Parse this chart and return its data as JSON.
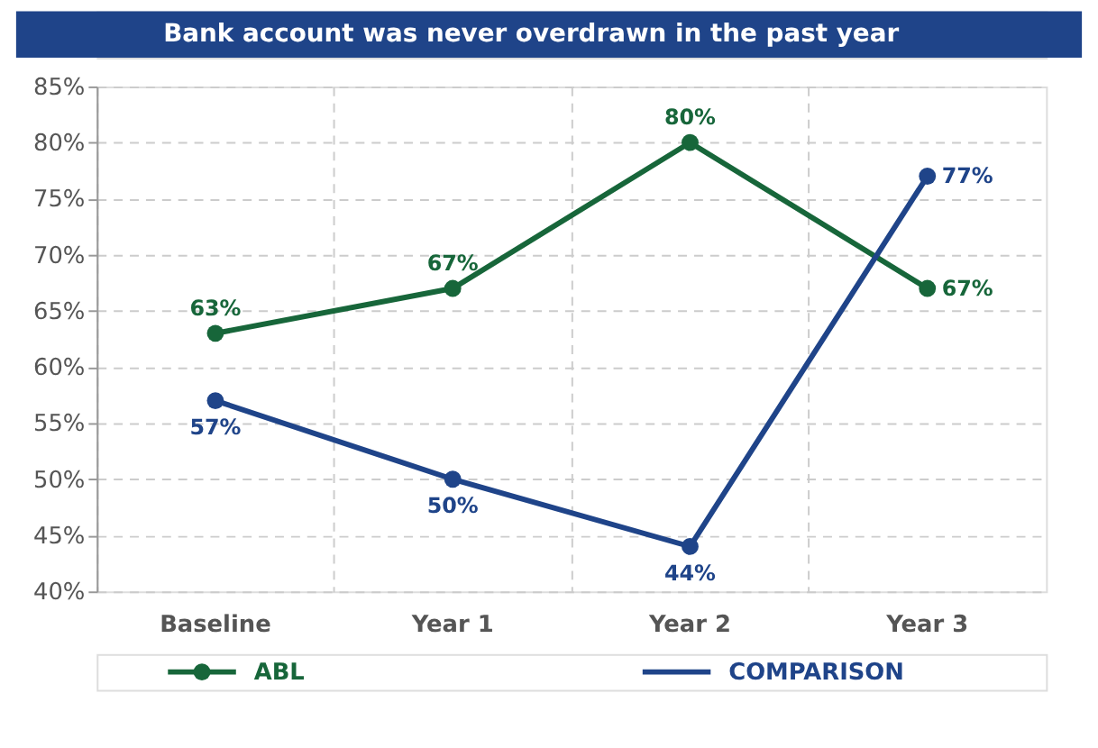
{
  "chart_data": {
    "type": "line",
    "title": "Bank account was never overdrawn in the past year",
    "categories": [
      "Baseline",
      "Year 1",
      "Year 2",
      "Year 3"
    ],
    "series": [
      {
        "name": "ABL",
        "color": "#17663a",
        "values": [
          63,
          67,
          80,
          67
        ],
        "value_labels": [
          "63%",
          "67%",
          "80%",
          "67%"
        ],
        "marker": "circle"
      },
      {
        "name": "COMPARISON",
        "color": "#1f4489",
        "values": [
          57,
          50,
          44,
          77
        ],
        "value_labels": [
          "57%",
          "50%",
          "44%",
          "77%"
        ],
        "marker": "circle"
      }
    ],
    "ylim": [
      40,
      85
    ],
    "yticks": [
      {
        "value": 40,
        "label": "40%"
      },
      {
        "value": 45,
        "label": "45%"
      },
      {
        "value": 50,
        "label": "50%"
      },
      {
        "value": 55,
        "label": "55%"
      },
      {
        "value": 60,
        "label": "60%"
      },
      {
        "value": 65,
        "label": "65%"
      },
      {
        "value": 70,
        "label": "70%"
      },
      {
        "value": 75,
        "label": "75%"
      },
      {
        "value": 80,
        "label": "80%"
      },
      {
        "value": 85,
        "label": "85%"
      }
    ],
    "grid": true,
    "legend": "bottom",
    "line_style": "solid"
  }
}
